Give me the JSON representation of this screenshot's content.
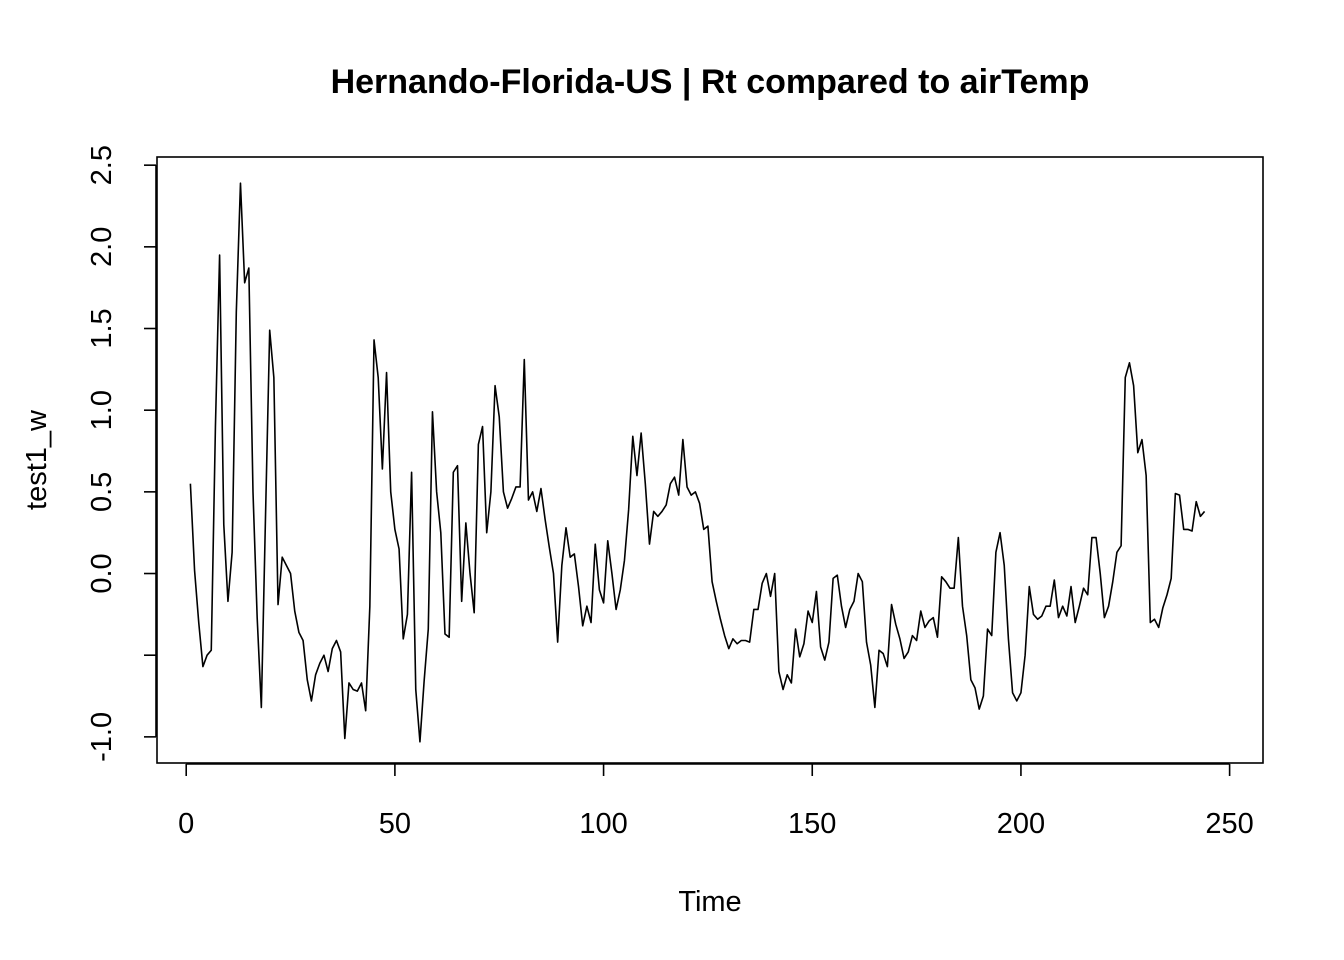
{
  "chart_data": {
    "type": "line",
    "title": "Hernando-Florida-US | Rt compared to airTemp",
    "xlabel": "Time",
    "ylabel": "test1_w",
    "xlim": [
      -7,
      258
    ],
    "ylim": [
      -1.16,
      2.55
    ],
    "x_ticks": [
      {
        "value": 0,
        "label": "0"
      },
      {
        "value": 50,
        "label": "50"
      },
      {
        "value": 100,
        "label": "100"
      },
      {
        "value": 150,
        "label": "150"
      },
      {
        "value": 200,
        "label": "200"
      },
      {
        "value": 250,
        "label": "250"
      }
    ],
    "y_ticks": [
      {
        "value": -1.0,
        "label": "-1.0"
      },
      {
        "value": -0.5,
        "label": ""
      },
      {
        "value": 0.0,
        "label": "0.0"
      },
      {
        "value": 0.5,
        "label": "0.5"
      },
      {
        "value": 1.0,
        "label": "1.0"
      },
      {
        "value": 1.5,
        "label": "1.5"
      },
      {
        "value": 2.0,
        "label": "2.0"
      },
      {
        "value": 2.5,
        "label": "2.5"
      }
    ],
    "grid": false,
    "legend": "none",
    "series": [
      {
        "x_start": 1,
        "x_step": 1,
        "values": [
          0.55,
          0.02,
          -0.3,
          -0.57,
          -0.5,
          -0.47,
          0.9,
          1.95,
          0.3,
          -0.17,
          0.13,
          1.6,
          2.39,
          1.78,
          1.87,
          0.5,
          -0.27,
          -0.82,
          0.35,
          1.49,
          1.2,
          -0.19,
          0.1,
          0.05,
          0.0,
          -0.23,
          -0.36,
          -0.41,
          -0.65,
          -0.78,
          -0.62,
          -0.55,
          -0.5,
          -0.6,
          -0.46,
          -0.41,
          -0.48,
          -1.01,
          -0.67,
          -0.71,
          -0.72,
          -0.67,
          -0.84,
          -0.2,
          1.43,
          1.2,
          0.64,
          1.23,
          0.5,
          0.27,
          0.15,
          -0.4,
          -0.25,
          0.62,
          -0.71,
          -1.03,
          -0.66,
          -0.34,
          0.99,
          0.5,
          0.25,
          -0.37,
          -0.39,
          0.62,
          0.66,
          -0.17,
          0.31,
          0.0,
          -0.24,
          0.79,
          0.9,
          0.25,
          0.5,
          1.15,
          0.96,
          0.5,
          0.4,
          0.46,
          0.53,
          0.53,
          1.31,
          0.45,
          0.5,
          0.38,
          0.52,
          0.33,
          0.16,
          0.0,
          -0.42,
          0.05,
          0.28,
          0.1,
          0.12,
          -0.08,
          -0.32,
          -0.2,
          -0.3,
          0.18,
          -0.1,
          -0.18,
          0.2,
          0.0,
          -0.22,
          -0.1,
          0.08,
          0.39,
          0.84,
          0.6,
          0.86,
          0.55,
          0.18,
          0.38,
          0.35,
          0.38,
          0.42,
          0.55,
          0.59,
          0.48,
          0.82,
          0.53,
          0.48,
          0.5,
          0.43,
          0.27,
          0.29,
          -0.05,
          -0.17,
          -0.28,
          -0.38,
          -0.46,
          -0.4,
          -0.43,
          -0.41,
          -0.41,
          -0.42,
          -0.22,
          -0.22,
          -0.06,
          0.0,
          -0.14,
          0.0,
          -0.6,
          -0.71,
          -0.62,
          -0.67,
          -0.34,
          -0.51,
          -0.43,
          -0.23,
          -0.3,
          -0.11,
          -0.45,
          -0.53,
          -0.42,
          -0.03,
          -0.01,
          -0.2,
          -0.33,
          -0.22,
          -0.17,
          0.0,
          -0.05,
          -0.42,
          -0.56,
          -0.82,
          -0.47,
          -0.49,
          -0.57,
          -0.19,
          -0.31,
          -0.4,
          -0.52,
          -0.48,
          -0.38,
          -0.41,
          -0.23,
          -0.33,
          -0.29,
          -0.27,
          -0.39,
          -0.02,
          -0.05,
          -0.09,
          -0.09,
          0.22,
          -0.2,
          -0.38,
          -0.65,
          -0.7,
          -0.83,
          -0.75,
          -0.34,
          -0.38,
          0.13,
          0.25,
          0.05,
          -0.4,
          -0.73,
          -0.78,
          -0.73,
          -0.5,
          -0.08,
          -0.25,
          -0.28,
          -0.26,
          -0.2,
          -0.2,
          -0.04,
          -0.27,
          -0.2,
          -0.26,
          -0.08,
          -0.3,
          -0.2,
          -0.09,
          -0.13,
          0.22,
          0.22,
          0.0,
          -0.27,
          -0.2,
          -0.05,
          0.13,
          0.17,
          1.2,
          1.29,
          1.15,
          0.74,
          0.82,
          0.6,
          -0.3,
          -0.28,
          -0.33,
          -0.21,
          -0.13,
          -0.03,
          0.49,
          0.48,
          0.27,
          0.27,
          0.26,
          0.44,
          0.35,
          0.38
        ]
      }
    ]
  }
}
